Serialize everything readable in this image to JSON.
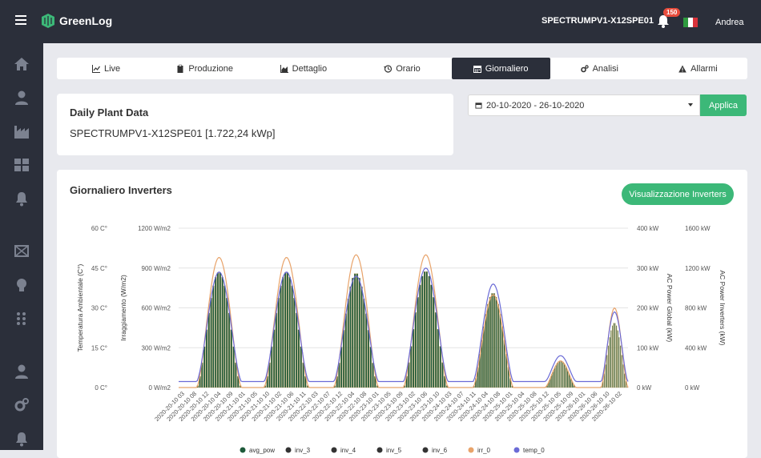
{
  "topbar": {
    "app_name": "GreenLog",
    "device": "SPECTRUMPV1-X12SPE01",
    "notifications": "150",
    "user": "Andrea"
  },
  "tabs": [
    {
      "label": "Live",
      "icon": "line-chart-icon"
    },
    {
      "label": "Produzione",
      "icon": "clipboard-icon"
    },
    {
      "label": "Dettaglio",
      "icon": "area-chart-icon"
    },
    {
      "label": "Orario",
      "icon": "history-icon"
    },
    {
      "label": "Giornaliero",
      "icon": "calendar-icon",
      "active": true
    },
    {
      "label": "Analisi",
      "icon": "cogs-icon"
    },
    {
      "label": "Allarmi",
      "icon": "warning-icon"
    }
  ],
  "info": {
    "title": "Daily Plant Data",
    "plant": "SPECTRUMPV1-X12SPE01 [1.722,24 kWp]"
  },
  "filter": {
    "date_range": "20-10-2020 - 26-10-2020",
    "apply_label": "Applica"
  },
  "chart_card": {
    "title": "Giornaliero Inverters",
    "view_button": "Visualizzazione Inverters"
  },
  "chart_data": {
    "type": "line",
    "axes": {
      "temp": {
        "label": "Temperatura Ambientale (C°)",
        "ticks": [
          "0 C°",
          "15 C°",
          "30 C°",
          "45 C°",
          "60 C°"
        ],
        "range": [
          0,
          60
        ]
      },
      "irr": {
        "label": "Irraggiamento (W/m2)",
        "ticks": [
          "0 W/m2",
          "300 W/m2",
          "600 W/m2",
          "900 W/m2",
          "1200 W/m2"
        ],
        "range": [
          0,
          1200
        ]
      },
      "ac_global": {
        "label": "AC Power Global (kW)",
        "ticks": [
          "0 kW",
          "100 kW",
          "200 kW",
          "300 kW",
          "400 kW"
        ],
        "range": [
          0,
          400
        ]
      },
      "ac_inv": {
        "label": "AC Power Inverters (kW)",
        "ticks": [
          "0 kW",
          "400 kW",
          "800 kW",
          "1200 kW",
          "1600 kW"
        ],
        "range": [
          0,
          1600
        ]
      }
    },
    "x_labels": [
      "2020-20-10 03",
      "2020-20-10 08",
      "2020-20-10 12",
      "2020-20-10 04",
      "2020-20-10 09",
      "2020-21-10 01",
      "2020-21-10 05",
      "2020-21-10 10",
      "2020-21-10 02",
      "2020-21-10 06",
      "2020-21-10 11",
      "2020-22-10 03",
      "2020-22-10 07",
      "2020-22-10 12",
      "2020-22-10 04",
      "2020-22-10 08",
      "2020-23-10 01",
      "2020-23-10 05",
      "2020-23-10 09",
      "2020-23-10 02",
      "2020-23-10 06",
      "2020-23-10 10",
      "2020-24-10 03",
      "2020-24-10 07",
      "2020-24-10 11",
      "2020-24-10 04",
      "2020-24-10 08",
      "2020-25-10 01",
      "2020-25-10 04",
      "2020-25-10 08",
      "2020-25-10 12",
      "2020-25-10 05",
      "2020-25-10 09",
      "2020-26-10 01",
      "2020-26-10 06",
      "2020-26-10 10",
      "2020-26-10 02"
    ],
    "days": [
      {
        "start": 0.04,
        "end": 0.14,
        "peak_irr": 980,
        "peak_global": 290,
        "peak_inv": 1160
      },
      {
        "start": 0.19,
        "end": 0.29,
        "peak_irr": 980,
        "peak_global": 290,
        "peak_inv": 1160
      },
      {
        "start": 0.345,
        "end": 0.445,
        "peak_irr": 1000,
        "peak_global": 280,
        "peak_inv": 1150
      },
      {
        "start": 0.5,
        "end": 0.6,
        "peak_irr": 1000,
        "peak_global": 300,
        "peak_inv": 1170
      },
      {
        "start": 0.655,
        "end": 0.745,
        "peak_irr": 700,
        "peak_global": 260,
        "peak_inv": 950
      },
      {
        "start": 0.815,
        "end": 0.885,
        "peak_irr": 200,
        "peak_global": 80,
        "peak_inv": 270
      },
      {
        "start": 0.94,
        "end": 1.0,
        "peak_irr": 600,
        "peak_global": 190,
        "peak_inv": 650
      }
    ],
    "legend": [
      {
        "name": "avg_pow",
        "color": "#1e5a3a"
      },
      {
        "name": "inv_3",
        "color": "#333333"
      },
      {
        "name": "inv_4",
        "color": "#333333"
      },
      {
        "name": "inv_5",
        "color": "#333333"
      },
      {
        "name": "inv_6",
        "color": "#333333"
      },
      {
        "name": "irr_0",
        "color": "#e8a36a"
      },
      {
        "name": "temp_0",
        "color": "#6b6bd6"
      }
    ]
  },
  "colors": {
    "accent": "#3cb878",
    "dark": "#2b2f3a",
    "bar": "#1e5a3a",
    "irr": "#e8a36a",
    "global": "#6b6bd6"
  }
}
